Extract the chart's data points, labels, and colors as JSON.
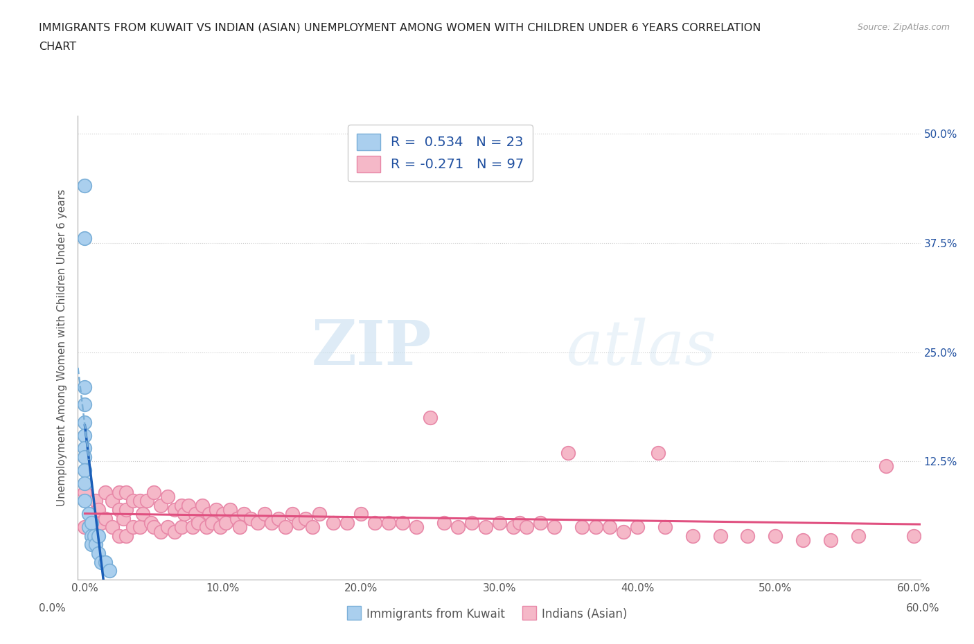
{
  "title_line1": "IMMIGRANTS FROM KUWAIT VS INDIAN (ASIAN) UNEMPLOYMENT AMONG WOMEN WITH CHILDREN UNDER 6 YEARS CORRELATION",
  "title_line2": "CHART",
  "source": "Source: ZipAtlas.com",
  "ylabel": "Unemployment Among Women with Children Under 6 years",
  "xlim": [
    -0.005,
    0.605
  ],
  "ylim": [
    -0.01,
    0.52
  ],
  "xticks": [
    0.0,
    0.1,
    0.2,
    0.3,
    0.4,
    0.5,
    0.6
  ],
  "xticklabels": [
    "0.0%",
    "10.0%",
    "20.0%",
    "30.0%",
    "40.0%",
    "50.0%",
    "60.0%"
  ],
  "yticks_right": [
    0.0,
    0.125,
    0.25,
    0.375,
    0.5
  ],
  "ytick_right_labels": [
    "",
    "12.5%",
    "25.0%",
    "37.5%",
    "50.0%"
  ],
  "gridline_y": [
    0.125,
    0.25,
    0.375,
    0.5
  ],
  "kuwait_color": "#aacfee",
  "kuwait_edge": "#7aafd8",
  "kuwait_line_color": "#1a5eb8",
  "kuwait_line_dash_color": "#7aafd8",
  "indian_color": "#f5b8c8",
  "indian_edge": "#e888a8",
  "indian_line_color": "#e05080",
  "R_kuwait": 0.534,
  "N_kuwait": 23,
  "R_indian": -0.271,
  "N_indian": 97,
  "legend_text_color": "#2050a0",
  "background_color": "#ffffff",
  "watermark_zip": "ZIP",
  "watermark_atlas": "atlas",
  "kuwait_x": [
    0.0,
    0.0,
    0.0,
    0.0,
    0.0,
    0.0,
    0.0,
    0.0,
    0.0,
    0.0,
    0.0,
    0.003,
    0.003,
    0.005,
    0.005,
    0.005,
    0.007,
    0.008,
    0.01,
    0.01,
    0.012,
    0.015,
    0.018
  ],
  "kuwait_y": [
    0.44,
    0.38,
    0.21,
    0.19,
    0.17,
    0.155,
    0.14,
    0.13,
    0.115,
    0.1,
    0.08,
    0.065,
    0.05,
    0.055,
    0.04,
    0.03,
    0.04,
    0.03,
    0.04,
    0.02,
    0.01,
    0.01,
    0.0
  ],
  "indian_x": [
    0.0,
    0.0,
    0.005,
    0.008,
    0.01,
    0.012,
    0.015,
    0.015,
    0.02,
    0.02,
    0.025,
    0.025,
    0.025,
    0.028,
    0.03,
    0.03,
    0.03,
    0.035,
    0.035,
    0.04,
    0.04,
    0.042,
    0.045,
    0.048,
    0.05,
    0.05,
    0.055,
    0.055,
    0.06,
    0.06,
    0.065,
    0.065,
    0.07,
    0.07,
    0.072,
    0.075,
    0.078,
    0.08,
    0.082,
    0.085,
    0.088,
    0.09,
    0.092,
    0.095,
    0.098,
    0.1,
    0.102,
    0.105,
    0.11,
    0.112,
    0.115,
    0.12,
    0.125,
    0.13,
    0.135,
    0.14,
    0.145,
    0.15,
    0.155,
    0.16,
    0.165,
    0.17,
    0.18,
    0.19,
    0.2,
    0.21,
    0.22,
    0.23,
    0.24,
    0.25,
    0.26,
    0.27,
    0.28,
    0.29,
    0.3,
    0.31,
    0.315,
    0.32,
    0.33,
    0.34,
    0.35,
    0.36,
    0.37,
    0.38,
    0.39,
    0.4,
    0.415,
    0.42,
    0.44,
    0.46,
    0.48,
    0.5,
    0.52,
    0.54,
    0.56,
    0.58,
    0.6
  ],
  "indian_y": [
    0.09,
    0.05,
    0.065,
    0.08,
    0.07,
    0.055,
    0.09,
    0.06,
    0.08,
    0.05,
    0.09,
    0.07,
    0.04,
    0.06,
    0.09,
    0.07,
    0.04,
    0.08,
    0.05,
    0.08,
    0.05,
    0.065,
    0.08,
    0.055,
    0.09,
    0.05,
    0.075,
    0.045,
    0.085,
    0.05,
    0.07,
    0.045,
    0.075,
    0.05,
    0.065,
    0.075,
    0.05,
    0.065,
    0.055,
    0.075,
    0.05,
    0.065,
    0.055,
    0.07,
    0.05,
    0.065,
    0.055,
    0.07,
    0.06,
    0.05,
    0.065,
    0.06,
    0.055,
    0.065,
    0.055,
    0.06,
    0.05,
    0.065,
    0.055,
    0.06,
    0.05,
    0.065,
    0.055,
    0.055,
    0.065,
    0.055,
    0.055,
    0.055,
    0.05,
    0.175,
    0.055,
    0.05,
    0.055,
    0.05,
    0.055,
    0.05,
    0.055,
    0.05,
    0.055,
    0.05,
    0.135,
    0.05,
    0.05,
    0.05,
    0.045,
    0.05,
    0.135,
    0.05,
    0.04,
    0.04,
    0.04,
    0.04,
    0.035,
    0.035,
    0.04,
    0.12,
    0.04
  ]
}
